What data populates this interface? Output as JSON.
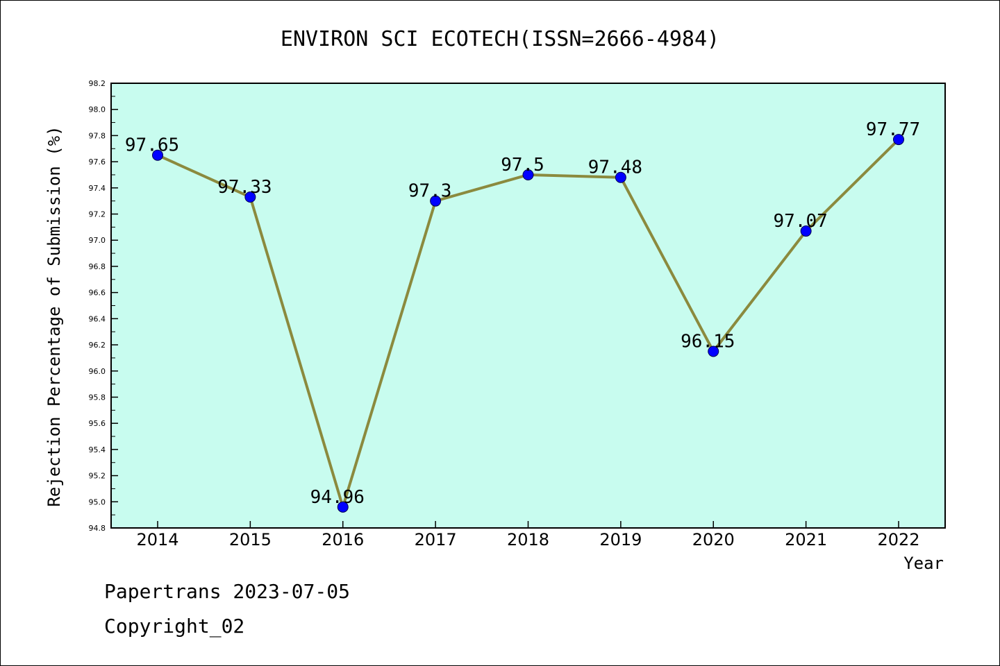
{
  "chart_data": {
    "type": "line",
    "title": "ENVIRON SCI ECOTECH(ISSN=2666-4984)",
    "xlabel": "Year",
    "ylabel": "Rejection Percentage of Submission (%)",
    "categories": [
      "2014",
      "2015",
      "2016",
      "2017",
      "2018",
      "2019",
      "2020",
      "2021",
      "2022"
    ],
    "values": [
      97.65,
      97.33,
      94.96,
      97.3,
      97.5,
      97.48,
      96.15,
      97.07,
      97.77
    ],
    "value_labels": [
      "97.65",
      "97.33",
      "94.96",
      "97.3",
      "97.5",
      "97.48",
      "96.15",
      "97.07",
      "97.77"
    ],
    "ylim": [
      94.8,
      98.2
    ],
    "yticks": [
      "94.8",
      "95.0",
      "95.2",
      "95.4",
      "95.6",
      "95.8",
      "96.0",
      "96.2",
      "96.4",
      "96.6",
      "96.8",
      "97.0",
      "97.2",
      "97.4",
      "97.6",
      "97.8",
      "98.0",
      "98.2"
    ],
    "grid": false,
    "colors": {
      "plot_background": "#c8fcef",
      "line": "#8b8a3e",
      "marker": "#0000ff"
    }
  },
  "footer": {
    "line1": "Papertrans 2023-07-05",
    "line2": "Copyright_02"
  }
}
